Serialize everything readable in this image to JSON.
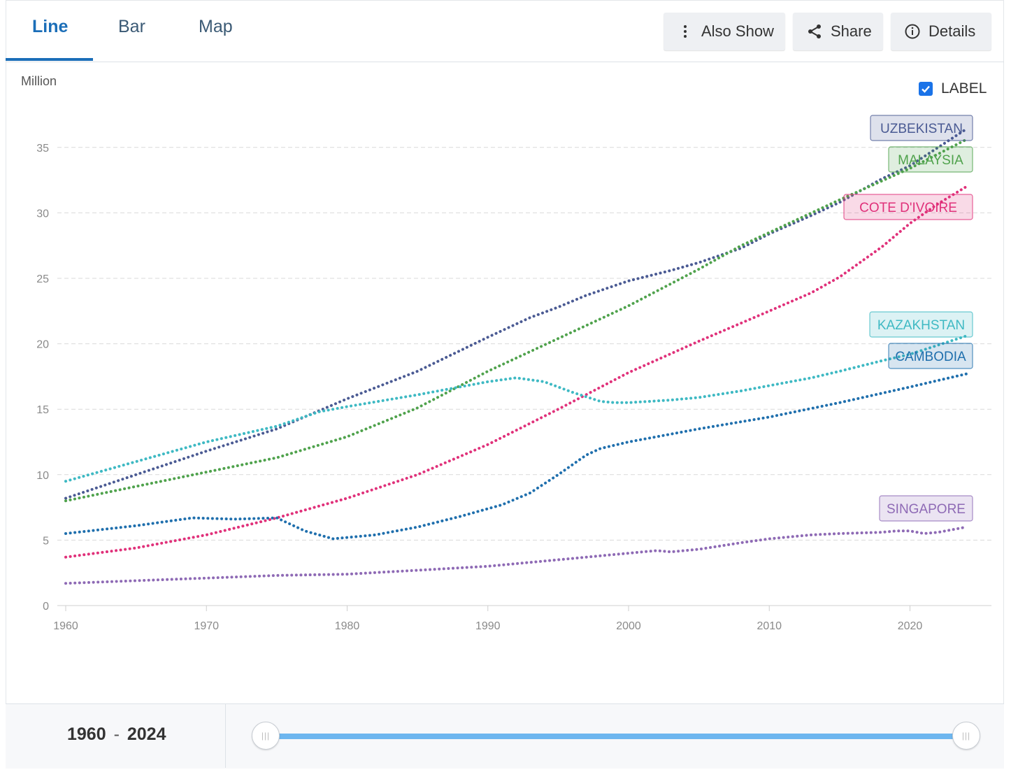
{
  "tabs": [
    {
      "label": "Line",
      "active": true
    },
    {
      "label": "Bar",
      "active": false
    },
    {
      "label": "Map",
      "active": false
    }
  ],
  "toolbar": {
    "also_show": "Also Show",
    "share": "Share",
    "details": "Details"
  },
  "label_toggle": {
    "text": "LABEL",
    "checked": true
  },
  "range": {
    "start": "1960",
    "end": "2024",
    "separator": "-"
  },
  "chart_data": {
    "type": "line",
    "ylabel": "Million",
    "ylim": [
      0,
      37
    ],
    "xlim": [
      1960,
      2024
    ],
    "yticks": [
      0,
      5,
      10,
      15,
      20,
      25,
      30,
      35
    ],
    "xticks": [
      1960,
      1970,
      1980,
      1990,
      2000,
      2010,
      2020
    ],
    "grid": true,
    "series": [
      {
        "name": "UZBEKISTAN",
        "color": "#4a5a93",
        "points": [
          [
            1960,
            8.2
          ],
          [
            1965,
            10.0
          ],
          [
            1970,
            11.8
          ],
          [
            1975,
            13.5
          ],
          [
            1980,
            15.8
          ],
          [
            1985,
            17.9
          ],
          [
            1990,
            20.5
          ],
          [
            1993,
            22.0
          ],
          [
            1995,
            22.8
          ],
          [
            1997,
            23.7
          ],
          [
            2000,
            24.8
          ],
          [
            2003,
            25.6
          ],
          [
            2005,
            26.2
          ],
          [
            2008,
            27.3
          ],
          [
            2010,
            28.4
          ],
          [
            2013,
            29.8
          ],
          [
            2015,
            30.8
          ],
          [
            2018,
            32.6
          ],
          [
            2020,
            33.6
          ],
          [
            2022,
            35.0
          ],
          [
            2024,
            36.4
          ]
        ]
      },
      {
        "name": "MALAYSIA",
        "color": "#4fa24c",
        "points": [
          [
            1960,
            8.0
          ],
          [
            1965,
            9.1
          ],
          [
            1970,
            10.2
          ],
          [
            1975,
            11.3
          ],
          [
            1980,
            12.9
          ],
          [
            1985,
            15.1
          ],
          [
            1990,
            17.9
          ],
          [
            1995,
            20.4
          ],
          [
            2000,
            22.9
          ],
          [
            2005,
            25.7
          ],
          [
            2008,
            27.5
          ],
          [
            2010,
            28.5
          ],
          [
            2015,
            31.0
          ],
          [
            2020,
            33.4
          ],
          [
            2024,
            35.6
          ]
        ]
      },
      {
        "name": "COTE D'IVOIRE",
        "color": "#e0317a",
        "points": [
          [
            1960,
            3.7
          ],
          [
            1965,
            4.4
          ],
          [
            1970,
            5.4
          ],
          [
            1975,
            6.7
          ],
          [
            1980,
            8.2
          ],
          [
            1985,
            10.0
          ],
          [
            1990,
            12.3
          ],
          [
            1995,
            15.0
          ],
          [
            2000,
            17.8
          ],
          [
            2005,
            20.2
          ],
          [
            2010,
            22.5
          ],
          [
            2013,
            23.9
          ],
          [
            2015,
            25.1
          ],
          [
            2018,
            27.4
          ],
          [
            2020,
            29.2
          ],
          [
            2022,
            30.7
          ],
          [
            2024,
            32.0
          ]
        ]
      },
      {
        "name": "KAZAKHSTAN",
        "color": "#3eb9c3",
        "points": [
          [
            1960,
            9.5
          ],
          [
            1965,
            11.0
          ],
          [
            1970,
            12.5
          ],
          [
            1975,
            13.7
          ],
          [
            1978,
            14.8
          ],
          [
            1980,
            15.2
          ],
          [
            1985,
            16.1
          ],
          [
            1990,
            17.1
          ],
          [
            1992,
            17.4
          ],
          [
            1994,
            17.1
          ],
          [
            1996,
            16.3
          ],
          [
            1998,
            15.6
          ],
          [
            1999,
            15.5
          ],
          [
            2000,
            15.5
          ],
          [
            2003,
            15.7
          ],
          [
            2005,
            15.9
          ],
          [
            2008,
            16.4
          ],
          [
            2010,
            16.8
          ],
          [
            2013,
            17.4
          ],
          [
            2015,
            17.9
          ],
          [
            2018,
            18.7
          ],
          [
            2020,
            19.2
          ],
          [
            2022,
            19.9
          ],
          [
            2024,
            20.6
          ]
        ]
      },
      {
        "name": "CAMBODIA",
        "color": "#1f6fad",
        "points": [
          [
            1960,
            5.5
          ],
          [
            1965,
            6.1
          ],
          [
            1969,
            6.7
          ],
          [
            1972,
            6.6
          ],
          [
            1975,
            6.7
          ],
          [
            1977,
            5.7
          ],
          [
            1979,
            5.1
          ],
          [
            1982,
            5.4
          ],
          [
            1985,
            6.0
          ],
          [
            1988,
            6.8
          ],
          [
            1991,
            7.7
          ],
          [
            1993,
            8.6
          ],
          [
            1995,
            10.0
          ],
          [
            1997,
            11.5
          ],
          [
            1998,
            12.0
          ],
          [
            2000,
            12.5
          ],
          [
            2003,
            13.1
          ],
          [
            2005,
            13.5
          ],
          [
            2010,
            14.4
          ],
          [
            2015,
            15.5
          ],
          [
            2020,
            16.7
          ],
          [
            2024,
            17.7
          ]
        ]
      },
      {
        "name": "SINGAPORE",
        "color": "#8e6ab5",
        "points": [
          [
            1960,
            1.7
          ],
          [
            1965,
            1.9
          ],
          [
            1970,
            2.1
          ],
          [
            1975,
            2.3
          ],
          [
            1980,
            2.4
          ],
          [
            1985,
            2.7
          ],
          [
            1990,
            3.0
          ],
          [
            1995,
            3.5
          ],
          [
            2000,
            4.0
          ],
          [
            2002,
            4.2
          ],
          [
            2003,
            4.1
          ],
          [
            2005,
            4.3
          ],
          [
            2008,
            4.8
          ],
          [
            2010,
            5.1
          ],
          [
            2013,
            5.4
          ],
          [
            2015,
            5.5
          ],
          [
            2018,
            5.6
          ],
          [
            2019,
            5.7
          ],
          [
            2020,
            5.7
          ],
          [
            2021,
            5.5
          ],
          [
            2022,
            5.6
          ],
          [
            2024,
            6.0
          ]
        ]
      }
    ]
  }
}
